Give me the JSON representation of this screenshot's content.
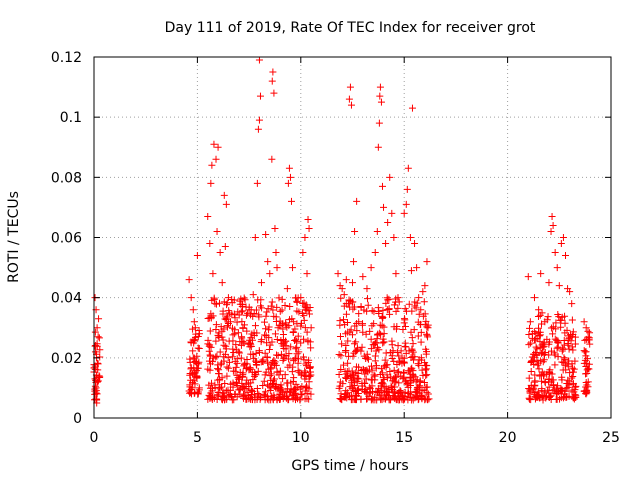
{
  "chart_data": {
    "type": "scatter",
    "title": "Day 111 of 2019, Rate Of TEC Index for receiver grot",
    "xlabel": "GPS time / hours",
    "ylabel": "ROTI / TECUs",
    "xlim": [
      0,
      25
    ],
    "ylim": [
      0,
      0.12
    ],
    "xticks": [
      0,
      5,
      10,
      15,
      20,
      25
    ],
    "xtick_labels": [
      "0",
      "5",
      "10",
      "15",
      "20",
      "25"
    ],
    "yticks": [
      0,
      0.02,
      0.04,
      0.06,
      0.08,
      0.1,
      0.12
    ],
    "ytick_labels": [
      "0",
      "0.02",
      "0.04",
      "0.06",
      "0.08",
      "0.1",
      "0.12"
    ],
    "grid": true,
    "marker": "+",
    "color": "#ff0000",
    "series": [
      {
        "points": [
          [
            0.05,
            0.04
          ],
          [
            0.1,
            0.036
          ],
          [
            0.15,
            0.03
          ],
          [
            0.2,
            0.027
          ],
          [
            0.08,
            0.024
          ],
          [
            0.12,
            0.02
          ],
          [
            0.18,
            0.016
          ],
          [
            0.05,
            0.013
          ],
          [
            0.1,
            0.01
          ],
          [
            0.15,
            0.008
          ],
          [
            0.2,
            0.018
          ],
          [
            0.25,
            0.014
          ],
          [
            0.07,
            0.022
          ],
          [
            0.22,
            0.033
          ],
          [
            0.13,
            0.005
          ],
          [
            4.6,
            0.046
          ],
          [
            4.7,
            0.04
          ],
          [
            4.8,
            0.036
          ],
          [
            4.9,
            0.03
          ],
          [
            4.7,
            0.025
          ],
          [
            4.8,
            0.02
          ],
          [
            4.9,
            0.015
          ],
          [
            4.75,
            0.01
          ],
          [
            4.85,
            0.032
          ],
          [
            5.0,
            0.054
          ],
          [
            5.1,
            0.028
          ],
          [
            5.05,
            0.018
          ],
          [
            5.5,
            0.067
          ],
          [
            5.6,
            0.058
          ],
          [
            5.7,
            0.084
          ],
          [
            5.8,
            0.091
          ],
          [
            5.9,
            0.086
          ],
          [
            6.0,
            0.09
          ],
          [
            5.65,
            0.078
          ],
          [
            5.75,
            0.048
          ],
          [
            5.85,
            0.038
          ],
          [
            5.95,
            0.062
          ],
          [
            6.1,
            0.055
          ],
          [
            6.2,
            0.045
          ],
          [
            6.3,
            0.074
          ],
          [
            6.4,
            0.071
          ],
          [
            6.35,
            0.057
          ],
          [
            6.5,
            0.04
          ],
          [
            6.6,
            0.032
          ],
          [
            6.8,
            0.028
          ],
          [
            7.0,
            0.022
          ],
          [
            7.2,
            0.03
          ],
          [
            7.4,
            0.018
          ],
          [
            7.6,
            0.036
          ],
          [
            7.7,
            0.041
          ],
          [
            7.8,
            0.06
          ],
          [
            7.9,
            0.078
          ],
          [
            7.95,
            0.096
          ],
          [
            8.0,
            0.099
          ],
          [
            8.05,
            0.107
          ],
          [
            8.0,
            0.119
          ],
          [
            8.1,
            0.045
          ],
          [
            8.3,
            0.061
          ],
          [
            8.4,
            0.052
          ],
          [
            8.5,
            0.048
          ],
          [
            8.6,
            0.086
          ],
          [
            8.62,
            0.112
          ],
          [
            8.65,
            0.115
          ],
          [
            8.7,
            0.108
          ],
          [
            8.75,
            0.063
          ],
          [
            8.8,
            0.055
          ],
          [
            8.85,
            0.05
          ],
          [
            8.9,
            0.03
          ],
          [
            9.2,
            0.025
          ],
          [
            9.35,
            0.043
          ],
          [
            9.4,
            0.078
          ],
          [
            9.45,
            0.083
          ],
          [
            9.5,
            0.08
          ],
          [
            9.55,
            0.072
          ],
          [
            9.6,
            0.05
          ],
          [
            9.65,
            0.032
          ],
          [
            9.9,
            0.022
          ],
          [
            10.0,
            0.04
          ],
          [
            10.1,
            0.055
          ],
          [
            10.2,
            0.06
          ],
          [
            10.3,
            0.048
          ],
          [
            10.35,
            0.066
          ],
          [
            10.4,
            0.063
          ],
          [
            10.5,
            0.03
          ],
          [
            11.8,
            0.048
          ],
          [
            11.9,
            0.044
          ],
          [
            12.0,
            0.043
          ],
          [
            12.1,
            0.041
          ],
          [
            12.2,
            0.046
          ],
          [
            12.3,
            0.038
          ],
          [
            12.35,
            0.106
          ],
          [
            12.4,
            0.11
          ],
          [
            12.45,
            0.104
          ],
          [
            12.5,
            0.045
          ],
          [
            12.55,
            0.052
          ],
          [
            12.6,
            0.062
          ],
          [
            12.7,
            0.072
          ],
          [
            12.8,
            0.032
          ],
          [
            13.0,
            0.047
          ],
          [
            13.2,
            0.043
          ],
          [
            13.4,
            0.05
          ],
          [
            13.6,
            0.055
          ],
          [
            13.7,
            0.062
          ],
          [
            13.75,
            0.09
          ],
          [
            13.8,
            0.098
          ],
          [
            13.82,
            0.107
          ],
          [
            13.85,
            0.11
          ],
          [
            13.9,
            0.105
          ],
          [
            13.95,
            0.077
          ],
          [
            14.0,
            0.07
          ],
          [
            14.1,
            0.058
          ],
          [
            14.2,
            0.065
          ],
          [
            14.3,
            0.08
          ],
          [
            14.4,
            0.068
          ],
          [
            14.5,
            0.06
          ],
          [
            14.6,
            0.048
          ],
          [
            14.7,
            0.04
          ],
          [
            15.0,
            0.068
          ],
          [
            15.1,
            0.071
          ],
          [
            15.15,
            0.076
          ],
          [
            15.2,
            0.083
          ],
          [
            15.3,
            0.06
          ],
          [
            15.35,
            0.049
          ],
          [
            15.4,
            0.103
          ],
          [
            15.5,
            0.058
          ],
          [
            15.6,
            0.05
          ],
          [
            15.7,
            0.04
          ],
          [
            15.8,
            0.036
          ],
          [
            15.9,
            0.042
          ],
          [
            16.0,
            0.044
          ],
          [
            16.1,
            0.052
          ],
          [
            16.15,
            0.03
          ],
          [
            21.0,
            0.047
          ],
          [
            21.1,
            0.032
          ],
          [
            21.2,
            0.028
          ],
          [
            21.3,
            0.04
          ],
          [
            21.5,
            0.036
          ],
          [
            21.6,
            0.048
          ],
          [
            21.8,
            0.032
          ],
          [
            22.0,
            0.045
          ],
          [
            22.1,
            0.062
          ],
          [
            22.15,
            0.067
          ],
          [
            22.2,
            0.064
          ],
          [
            22.3,
            0.055
          ],
          [
            22.4,
            0.05
          ],
          [
            22.5,
            0.044
          ],
          [
            22.6,
            0.058
          ],
          [
            22.7,
            0.06
          ],
          [
            22.8,
            0.054
          ],
          [
            22.9,
            0.043
          ],
          [
            23.0,
            0.042
          ],
          [
            23.1,
            0.038
          ],
          [
            23.7,
            0.032
          ],
          [
            23.8,
            0.03
          ],
          [
            23.9,
            0.026
          ],
          [
            23.75,
            0.022
          ],
          [
            23.85,
            0.016
          ],
          [
            23.9,
            0.012
          ],
          [
            23.8,
            0.009
          ]
        ]
      }
    ],
    "dense_bands": [
      {
        "x": [
          0.0,
          0.3
        ],
        "y": [
          0.006,
          0.03
        ]
      },
      {
        "x": [
          4.6,
          5.1
        ],
        "y": [
          0.008,
          0.03
        ]
      },
      {
        "x": [
          5.5,
          9.0
        ],
        "y": [
          0.006,
          0.04
        ]
      },
      {
        "x": [
          9.0,
          10.5
        ],
        "y": [
          0.006,
          0.04
        ]
      },
      {
        "x": [
          11.8,
          12.8
        ],
        "y": [
          0.006,
          0.04
        ]
      },
      {
        "x": [
          12.9,
          16.2
        ],
        "y": [
          0.006,
          0.04
        ]
      },
      {
        "x": [
          21.0,
          23.3
        ],
        "y": [
          0.006,
          0.035
        ]
      },
      {
        "x": [
          23.7,
          24.0
        ],
        "y": [
          0.008,
          0.03
        ]
      }
    ]
  }
}
